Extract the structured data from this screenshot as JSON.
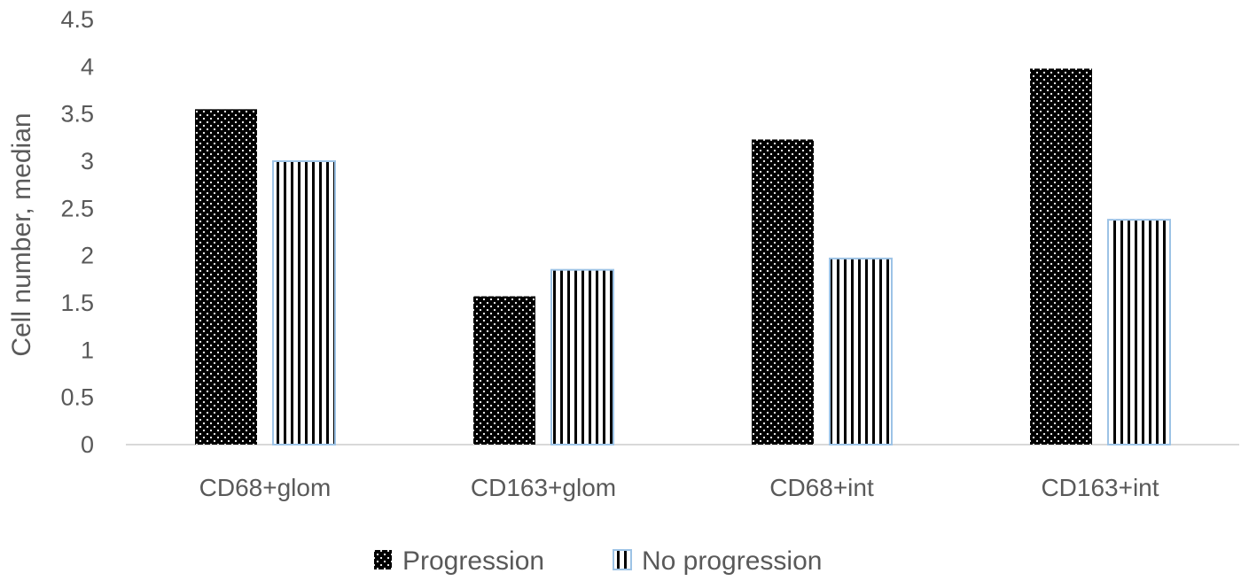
{
  "chart_data": {
    "type": "bar",
    "ylabel": "Cell number, median",
    "xlabel": "",
    "ylim": [
      0,
      4.5
    ],
    "yticks": [
      "0",
      "0.5",
      "1",
      "1.5",
      "2",
      "2.5",
      "3",
      "3.5",
      "4",
      "4.5"
    ],
    "categories": [
      "CD68+glom",
      "CD163+glom",
      "CD68+int",
      "CD163+int"
    ],
    "series": [
      {
        "name": "Progression",
        "values": [
          3.55,
          1.57,
          3.23,
          3.98
        ],
        "pattern": "dots",
        "color": "#000000"
      },
      {
        "name": "No progression",
        "values": [
          3.0,
          1.85,
          1.97,
          2.38
        ],
        "pattern": "vertical-stripes",
        "color": "#000000",
        "outline": "#9dc3e6"
      }
    ],
    "legend_position": "bottom",
    "grid": false
  }
}
